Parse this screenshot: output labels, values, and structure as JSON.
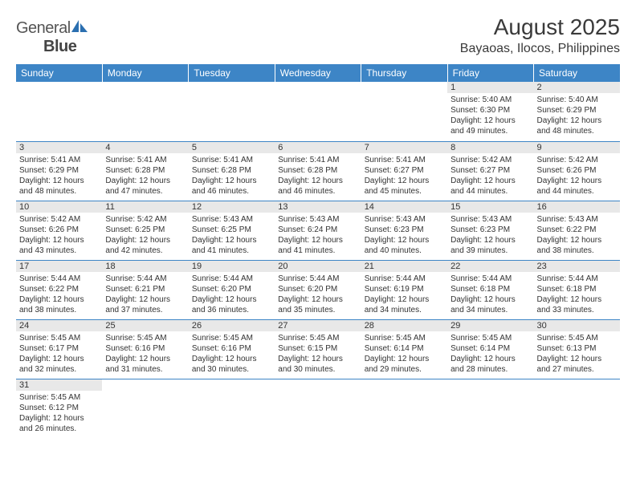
{
  "logo": {
    "text_a": "General",
    "text_b": "Blue"
  },
  "title": "August 2025",
  "location": "Bayaoas, Ilocos, Philippines",
  "colors": {
    "header_bg": "#3d85c6",
    "header_text": "#ffffff",
    "daynum_bg": "#e8e8e8",
    "cell_border": "#3d85c6",
    "text": "#333333",
    "logo_accent": "#2b6fb0"
  },
  "weekdays": [
    "Sunday",
    "Monday",
    "Tuesday",
    "Wednesday",
    "Thursday",
    "Friday",
    "Saturday"
  ],
  "month_start_weekday": 5,
  "days_in_month": 31,
  "days": {
    "1": {
      "sunrise": "5:40 AM",
      "sunset": "6:30 PM",
      "daylight": "12 hours and 49 minutes."
    },
    "2": {
      "sunrise": "5:40 AM",
      "sunset": "6:29 PM",
      "daylight": "12 hours and 48 minutes."
    },
    "3": {
      "sunrise": "5:41 AM",
      "sunset": "6:29 PM",
      "daylight": "12 hours and 48 minutes."
    },
    "4": {
      "sunrise": "5:41 AM",
      "sunset": "6:28 PM",
      "daylight": "12 hours and 47 minutes."
    },
    "5": {
      "sunrise": "5:41 AM",
      "sunset": "6:28 PM",
      "daylight": "12 hours and 46 minutes."
    },
    "6": {
      "sunrise": "5:41 AM",
      "sunset": "6:28 PM",
      "daylight": "12 hours and 46 minutes."
    },
    "7": {
      "sunrise": "5:41 AM",
      "sunset": "6:27 PM",
      "daylight": "12 hours and 45 minutes."
    },
    "8": {
      "sunrise": "5:42 AM",
      "sunset": "6:27 PM",
      "daylight": "12 hours and 44 minutes."
    },
    "9": {
      "sunrise": "5:42 AM",
      "sunset": "6:26 PM",
      "daylight": "12 hours and 44 minutes."
    },
    "10": {
      "sunrise": "5:42 AM",
      "sunset": "6:26 PM",
      "daylight": "12 hours and 43 minutes."
    },
    "11": {
      "sunrise": "5:42 AM",
      "sunset": "6:25 PM",
      "daylight": "12 hours and 42 minutes."
    },
    "12": {
      "sunrise": "5:43 AM",
      "sunset": "6:25 PM",
      "daylight": "12 hours and 41 minutes."
    },
    "13": {
      "sunrise": "5:43 AM",
      "sunset": "6:24 PM",
      "daylight": "12 hours and 41 minutes."
    },
    "14": {
      "sunrise": "5:43 AM",
      "sunset": "6:23 PM",
      "daylight": "12 hours and 40 minutes."
    },
    "15": {
      "sunrise": "5:43 AM",
      "sunset": "6:23 PM",
      "daylight": "12 hours and 39 minutes."
    },
    "16": {
      "sunrise": "5:43 AM",
      "sunset": "6:22 PM",
      "daylight": "12 hours and 38 minutes."
    },
    "17": {
      "sunrise": "5:44 AM",
      "sunset": "6:22 PM",
      "daylight": "12 hours and 38 minutes."
    },
    "18": {
      "sunrise": "5:44 AM",
      "sunset": "6:21 PM",
      "daylight": "12 hours and 37 minutes."
    },
    "19": {
      "sunrise": "5:44 AM",
      "sunset": "6:20 PM",
      "daylight": "12 hours and 36 minutes."
    },
    "20": {
      "sunrise": "5:44 AM",
      "sunset": "6:20 PM",
      "daylight": "12 hours and 35 minutes."
    },
    "21": {
      "sunrise": "5:44 AM",
      "sunset": "6:19 PM",
      "daylight": "12 hours and 34 minutes."
    },
    "22": {
      "sunrise": "5:44 AM",
      "sunset": "6:18 PM",
      "daylight": "12 hours and 34 minutes."
    },
    "23": {
      "sunrise": "5:44 AM",
      "sunset": "6:18 PM",
      "daylight": "12 hours and 33 minutes."
    },
    "24": {
      "sunrise": "5:45 AM",
      "sunset": "6:17 PM",
      "daylight": "12 hours and 32 minutes."
    },
    "25": {
      "sunrise": "5:45 AM",
      "sunset": "6:16 PM",
      "daylight": "12 hours and 31 minutes."
    },
    "26": {
      "sunrise": "5:45 AM",
      "sunset": "6:16 PM",
      "daylight": "12 hours and 30 minutes."
    },
    "27": {
      "sunrise": "5:45 AM",
      "sunset": "6:15 PM",
      "daylight": "12 hours and 30 minutes."
    },
    "28": {
      "sunrise": "5:45 AM",
      "sunset": "6:14 PM",
      "daylight": "12 hours and 29 minutes."
    },
    "29": {
      "sunrise": "5:45 AM",
      "sunset": "6:14 PM",
      "daylight": "12 hours and 28 minutes."
    },
    "30": {
      "sunrise": "5:45 AM",
      "sunset": "6:13 PM",
      "daylight": "12 hours and 27 minutes."
    },
    "31": {
      "sunrise": "5:45 AM",
      "sunset": "6:12 PM",
      "daylight": "12 hours and 26 minutes."
    }
  },
  "labels": {
    "sunrise": "Sunrise:",
    "sunset": "Sunset:",
    "daylight": "Daylight:"
  }
}
